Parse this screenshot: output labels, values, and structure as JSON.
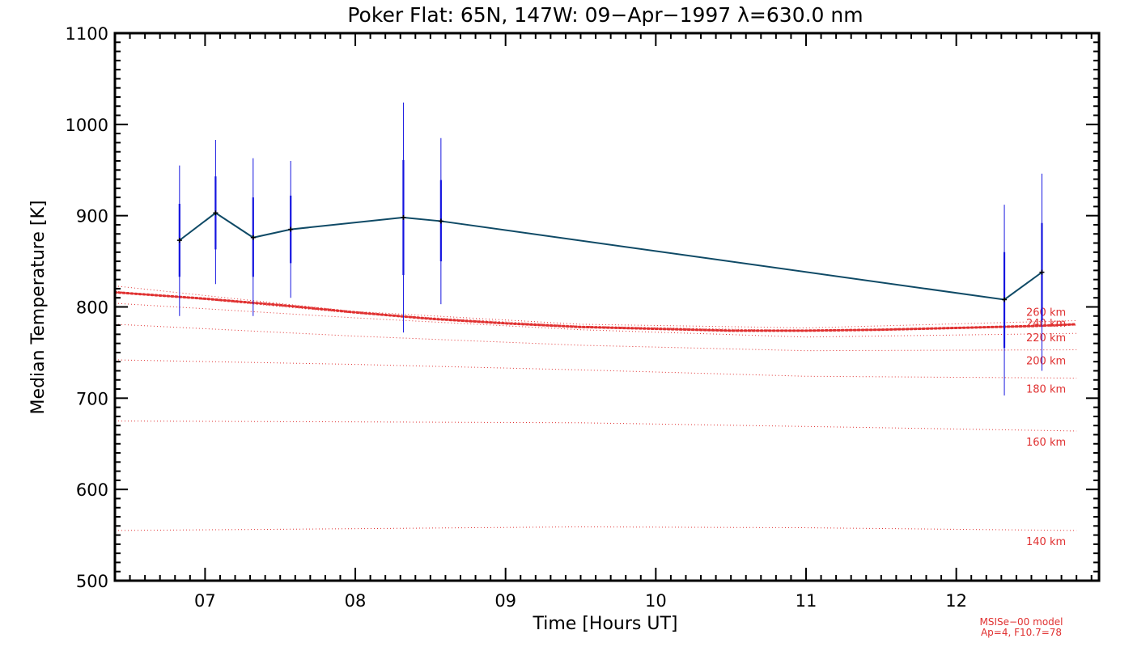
{
  "chart_data": {
    "type": "line",
    "title": "Poker Flat: 65N, 147W: 09−Apr−1997 λ=630.0 nm",
    "xlabel": "Time [Hours UT]",
    "ylabel": "Median Temperature [K]",
    "xlim": [
      6.4,
      12.95
    ],
    "ylim": [
      500,
      1100
    ],
    "x_ticks": [
      7,
      8,
      9,
      10,
      11,
      12
    ],
    "x_tick_labels": [
      "07",
      "08",
      "09",
      "10",
      "11",
      "12"
    ],
    "y_ticks": [
      500,
      600,
      700,
      800,
      900,
      1000,
      1100
    ],
    "y_tick_labels": [
      "500",
      "600",
      "700",
      "800",
      "900",
      "1000",
      "1100"
    ],
    "series": [
      {
        "name": "Median Temperature",
        "color": "#0f4a66",
        "errorbar_color": "#1515e0",
        "points": [
          {
            "x": 6.83,
            "y": 873,
            "inner": [
              833,
              913
            ],
            "outer": [
              790,
              955
            ]
          },
          {
            "x": 7.07,
            "y": 903,
            "inner": [
              863,
              943
            ],
            "outer": [
              825,
              983
            ]
          },
          {
            "x": 7.32,
            "y": 876,
            "inner": [
              833,
              920
            ],
            "outer": [
              790,
              963
            ]
          },
          {
            "x": 7.57,
            "y": 885,
            "inner": [
              848,
              922
            ],
            "outer": [
              810,
              960
            ]
          },
          {
            "x": 8.32,
            "y": 898,
            "inner": [
              835,
              961
            ],
            "outer": [
              772,
              1024
            ]
          },
          {
            "x": 8.57,
            "y": 894,
            "inner": [
              850,
              939
            ],
            "outer": [
              803,
              985
            ]
          },
          {
            "x": 12.32,
            "y": 808,
            "inner": [
              755,
              860
            ],
            "outer": [
              703,
              912
            ]
          },
          {
            "x": 12.57,
            "y": 838,
            "inner": [
              785,
              892
            ],
            "outer": [
              730,
              946
            ]
          }
        ]
      }
    ],
    "model_curves": [
      {
        "label": "140 km",
        "x": [
          6.4,
          8.0,
          9.5,
          11.0,
          12.8
        ],
        "y": [
          555,
          557,
          559,
          558,
          555
        ]
      },
      {
        "label": "160 km",
        "x": [
          6.4,
          8.0,
          9.5,
          11.0,
          12.8
        ],
        "y": [
          675,
          674,
          673,
          669,
          664
        ]
      },
      {
        "label": "180 km",
        "x": [
          6.4,
          8.0,
          9.5,
          11.0,
          12.8
        ],
        "y": [
          742,
          737,
          731,
          724,
          722
        ]
      },
      {
        "label": "200 km",
        "x": [
          6.4,
          8.0,
          9.5,
          11.0,
          12.8
        ],
        "y": [
          781,
          768,
          758,
          752,
          753
        ]
      },
      {
        "label": "220 km",
        "x": [
          6.4,
          8.0,
          9.5,
          11.0,
          12.8
        ],
        "y": [
          804,
          788,
          775,
          767,
          771
        ]
      },
      {
        "label": "240 km",
        "x": [
          6.4,
          8.0,
          9.5,
          11.0,
          12.8
        ],
        "y": [
          817,
          793,
          779,
          774,
          780
        ]
      },
      {
        "label": "260 km",
        "x": [
          6.4,
          8.0,
          9.5,
          11.0,
          12.8
        ],
        "y": [
          823,
          795,
          781,
          777,
          785
        ]
      }
    ],
    "highlighted_model": {
      "x": [
        6.4,
        7.0,
        7.5,
        8.0,
        8.5,
        9.0,
        9.5,
        10.0,
        10.5,
        11.0,
        11.5,
        12.0,
        12.5,
        12.8
      ],
      "y": [
        816,
        809,
        802,
        794,
        787,
        782,
        778,
        776,
        774,
        774,
        775,
        777,
        779,
        781
      ]
    },
    "model_note_line1": "MSISe−00 model",
    "model_note_line2": "Ap=4, F10.7=78"
  },
  "colors": {
    "model": "#e03030",
    "data_line": "#0f4a66",
    "errorbar": "#1515e0",
    "axis": "#000000"
  }
}
